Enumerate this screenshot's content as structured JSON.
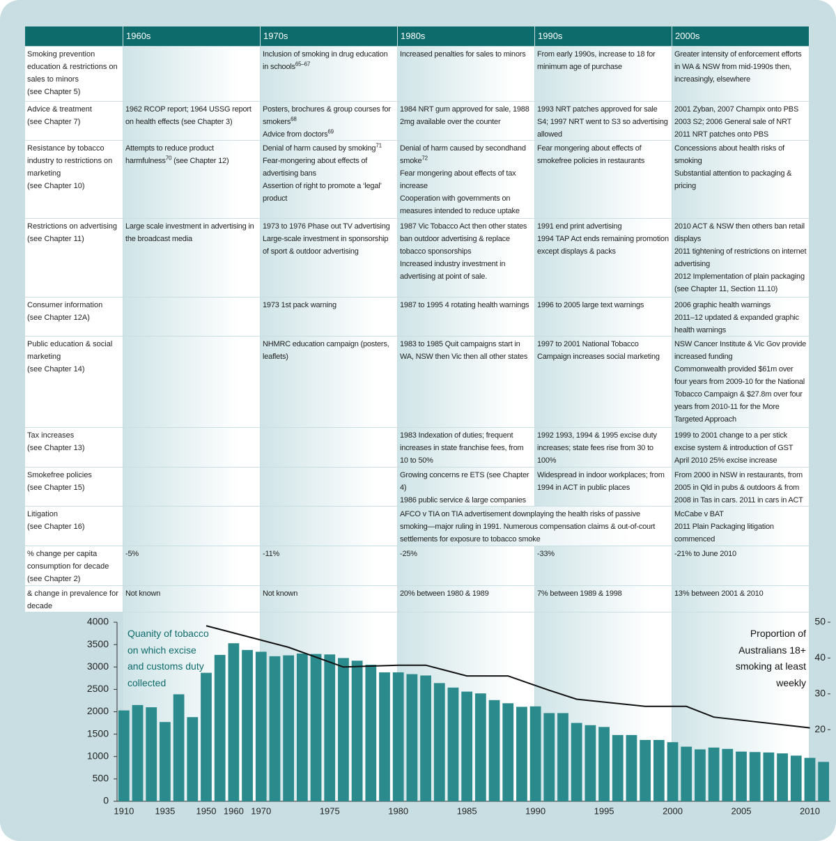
{
  "table": {
    "header": [
      "1960s",
      "1970s",
      "1980s",
      "1990s",
      "2000s"
    ],
    "rows": [
      {
        "label": {
          "name": "Smoking prevention education & restrictions on sales to minors",
          "ref": "(see Chapter 5)"
        },
        "cells": [
          [],
          [
            {
              "text": "Inclusion of smoking in drug education in schools",
              "sup": "65–67"
            }
          ],
          [
            "Increased penalties for sales to minors"
          ],
          [
            "From early 1990s, increase to 18 for minimum age of purchase"
          ],
          [
            "Greater intensity of enforcement efforts in WA & NSW from mid-1990s then, increasingly, elsewhere"
          ]
        ]
      },
      {
        "label": {
          "name": "Advice & treatment",
          "ref": "(see Chapter 7)"
        },
        "cells": [
          [
            "1962 RCOP report; 1964 USSG report on health effects (see Chapter 3)"
          ],
          [
            {
              "text": "Posters, brochures & group courses for smokers",
              "sup": "68"
            },
            {
              "text": "Advice from doctors",
              "sup": "69"
            }
          ],
          [
            "1984 NRT gum approved for sale, 1988 2mg available over the counter"
          ],
          [
            "1993 NRT patches approved for sale S4; 1997 NRT went to S3 so advertising allowed"
          ],
          [
            "2001 Zyban, 2007 Champix onto PBS",
            "2003 S2; 2006 General sale of NRT",
            "2011 NRT patches onto PBS"
          ]
        ]
      },
      {
        "label": {
          "name": "Resistance by tobacco industry to restrictions on marketing",
          "ref": "(see Chapter 10)"
        },
        "cells": [
          [
            {
              "text": "Attempts to reduce product harmfulness",
              "sup": "70",
              "after": " (see Chapter 12)"
            }
          ],
          [
            {
              "text": "Denial of harm caused by smoking",
              "sup": "71"
            },
            "Fear-mongering about effects of advertising bans",
            "Assertion of right to promote a ‘legal’ product"
          ],
          [
            {
              "text": "Denial of harm caused by secondhand smoke",
              "sup": "72"
            },
            "Fear mongering about effects of tax increase",
            "Cooperation with governments on measures intended to reduce uptake"
          ],
          [
            "Fear mongering about effects of smokefree policies in restaurants"
          ],
          [
            "Concessions about health risks of smoking",
            "Substantial attention to packaging & pricing"
          ]
        ]
      },
      {
        "label": {
          "name": "Restrictions on advertising",
          "ref": "(see Chapter 11)"
        },
        "cells": [
          [
            "Large scale investment in advertising in the broadcast media"
          ],
          [
            "1973 to 1976 Phase out TV advertising",
            "Large-scale investment in sponsorship of sport & outdoor advertising"
          ],
          [
            "1987 Vic Tobacco Act then other states ban outdoor advertising & replace tobacco sponsorships",
            "Increased industry investment in advertising at point of sale."
          ],
          [
            "1991 end print advertising",
            "1994 TAP Act ends remaining promotion except displays & packs"
          ],
          [
            "2010 ACT & NSW then others ban retail displays",
            "2011 tightening of restrictions on internet advertising",
            "2012 Implementation of plain packaging (see Chapter 11, Section 11.10)"
          ]
        ]
      },
      {
        "label": {
          "name": "Consumer information",
          "ref": "(see Chapter 12A)"
        },
        "cells": [
          [],
          [
            "1973 1st pack warning"
          ],
          [
            "1987 to 1995 4 rotating health warnings"
          ],
          [
            "1996 to 2005 large text warnings"
          ],
          [
            "2006 graphic health warnings",
            "2011–12 updated & expanded graphic health warnings"
          ]
        ]
      },
      {
        "label": {
          "name": "Public education & social marketing",
          "ref": "(see Chapter 14)"
        },
        "cells": [
          [],
          [
            "NHMRC education campaign (posters, leaflets)"
          ],
          [
            "1983 to 1985 Quit campaigns start in WA, NSW then Vic then all other states"
          ],
          [
            "1997 to 2001 National Tobacco Campaign increases social marketing"
          ],
          [
            "NSW Cancer Institute & Vic Gov provide increased funding",
            "Commonwealth provided $61m over four years from 2009-10 for the National Tobacco Campaign & $27.8m over four years from 2010-11 for the More Targeted Approach"
          ]
        ]
      },
      {
        "label": {
          "name": "Tax increases",
          "ref": "(see Chapter 13)"
        },
        "cells": [
          [],
          [],
          [
            "1983 Indexation of duties; frequent increases in state franchise fees, from 10 to 50%"
          ],
          [
            "1992 1993, 1994 & 1995 excise duty increases; state fees rise from 30 to 100%"
          ],
          [
            "1999 to 2001 change to a per stick excise system & introduction of GST",
            "April 2010 25% excise increase"
          ]
        ]
      },
      {
        "label": {
          "name": "Smokefree policies",
          "ref": "(see Chapter 15)"
        },
        "cells": [
          [],
          [],
          [
            "Growing concerns re ETS (see Chapter 4)",
            "1986 public service & large companies"
          ],
          [
            "Widespread in indoor workplaces; from 1994 in ACT in public places"
          ],
          [
            "From 2000 in NSW in restaurants, from 2005 in Qld in pubs & outdoors & from 2008 in Tas in cars. 2011 in cars in ACT"
          ]
        ]
      },
      {
        "label": {
          "name": "Litigation",
          "ref": "(see Chapter 16)"
        },
        "cells": [
          [],
          [],
          [
            "AFCO v TIA on TIA advertisement downplaying the health risks of passive smoking—major ruling in 1991. Numerous compensation claims & out-of-court settlements for exposure to tobacco smoke"
          ],
          null,
          [
            "McCabe v BAT",
            "2011 Plain Packaging litigation commenced"
          ]
        ]
      },
      {
        "label": {
          "name": "% change per capita consumption for decade",
          "ref": "(see Chapter 2)"
        },
        "cells": [
          [
            "-5%"
          ],
          [
            "-11%"
          ],
          [
            "-25%"
          ],
          [
            "-33%"
          ],
          [
            "-21% to June 2010"
          ]
        ]
      },
      {
        "label": {
          "name": "& change in prevalence for decade",
          "ref": "(see Chapter 1)"
        },
        "cells": [
          [
            "Not known"
          ],
          [
            "Not known"
          ],
          [
            "20% between 1980 & 1989"
          ],
          [
            "7% between 1989 & 1998"
          ],
          [
            "13% between 2001 & 2010"
          ]
        ]
      }
    ]
  },
  "chart_data": {
    "type": "bar",
    "categories": [
      1910,
      null,
      null,
      1935,
      null,
      null,
      1950,
      null,
      1960,
      null,
      1970,
      null,
      null,
      null,
      null,
      1975,
      null,
      null,
      null,
      null,
      1980,
      null,
      null,
      null,
      null,
      1985,
      null,
      null,
      null,
      null,
      1990,
      null,
      null,
      null,
      null,
      1995,
      null,
      null,
      null,
      null,
      2000,
      null,
      null,
      null,
      null,
      2005,
      null,
      null,
      null,
      null,
      2010,
      null
    ],
    "series": [
      {
        "name": "Quanity of tobacco on which excise and customs duty collected",
        "color": "#2b8a8c",
        "values": [
          2030,
          2150,
          2100,
          1770,
          2390,
          1880,
          2870,
          3270,
          3530,
          3380,
          3340,
          3240,
          3260,
          3300,
          3290,
          3280,
          3200,
          3140,
          3050,
          2880,
          2880,
          2840,
          2810,
          2640,
          2540,
          2450,
          2410,
          2260,
          2190,
          2110,
          2120,
          1970,
          1970,
          1750,
          1700,
          1660,
          1480,
          1480,
          1370,
          1370,
          1320,
          1220,
          1160,
          1200,
          1170,
          1110,
          1100,
          1090,
          1070,
          1020,
          970,
          880
        ]
      },
      {
        "name": "Proportion of Australians 18+ smoking at least weekly",
        "type": "line",
        "axis": "y2",
        "color": "#111111",
        "x": [
          1950,
          1972,
          1976,
          1980,
          1982,
          1985,
          1988,
          1991,
          1993,
          1998,
          2001,
          2003,
          2011
        ],
        "values": [
          49,
          43,
          37.5,
          38,
          38,
          35,
          35,
          31,
          28.5,
          26.5,
          26.5,
          23.5,
          20.5
        ]
      }
    ],
    "ylim": [
      0,
      4000
    ],
    "yticks": [
      0,
      500,
      1000,
      1500,
      2000,
      2500,
      3000,
      3500,
      4000
    ],
    "y2lim": [
      0,
      50
    ],
    "y2ticks": [
      20,
      30,
      40,
      50
    ]
  }
}
